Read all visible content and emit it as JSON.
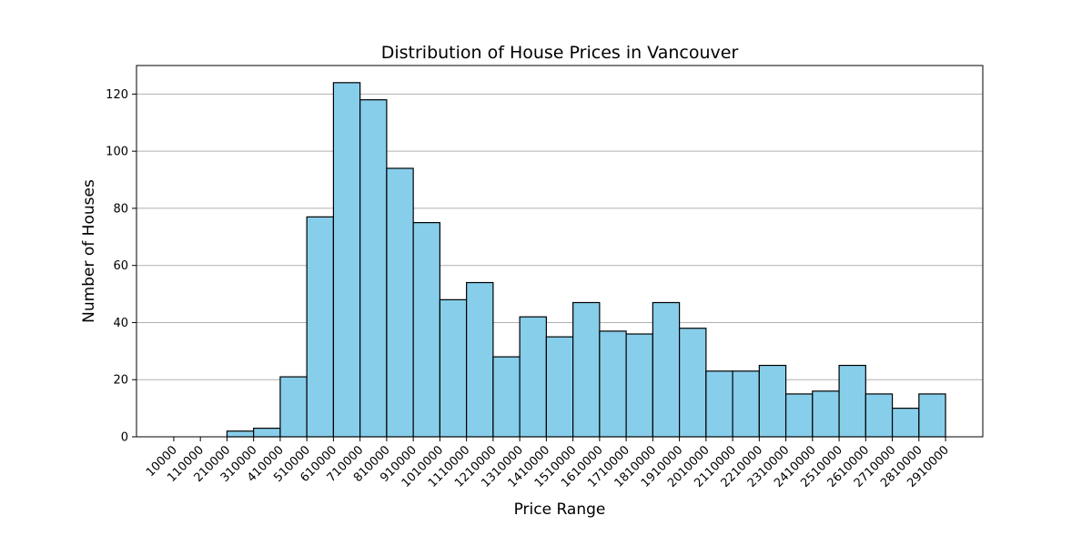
{
  "chart_data": {
    "type": "bar",
    "title": "Distribution of House Prices in Vancouver",
    "xlabel": "Price Range",
    "ylabel": "Number of Houses",
    "x_ticks": [
      "10000",
      "110000",
      "210000",
      "310000",
      "410000",
      "510000",
      "610000",
      "710000",
      "810000",
      "910000",
      "1010000",
      "1110000",
      "1210000",
      "1310000",
      "1410000",
      "1510000",
      "1610000",
      "1710000",
      "1810000",
      "1910000",
      "2010000",
      "2110000",
      "2210000",
      "2310000",
      "2410000",
      "2510000",
      "2610000",
      "2710000",
      "2810000",
      "2910000"
    ],
    "bins": [
      {
        "from": 10000,
        "to": 110000,
        "count": 0
      },
      {
        "from": 110000,
        "to": 210000,
        "count": 0
      },
      {
        "from": 210000,
        "to": 310000,
        "count": 2
      },
      {
        "from": 310000,
        "to": 410000,
        "count": 3
      },
      {
        "from": 410000,
        "to": 510000,
        "count": 21
      },
      {
        "from": 510000,
        "to": 610000,
        "count": 77
      },
      {
        "from": 610000,
        "to": 710000,
        "count": 124
      },
      {
        "from": 710000,
        "to": 810000,
        "count": 118
      },
      {
        "from": 810000,
        "to": 910000,
        "count": 94
      },
      {
        "from": 910000,
        "to": 1010000,
        "count": 75
      },
      {
        "from": 1010000,
        "to": 1110000,
        "count": 48
      },
      {
        "from": 1110000,
        "to": 1210000,
        "count": 54
      },
      {
        "from": 1210000,
        "to": 1310000,
        "count": 28
      },
      {
        "from": 1310000,
        "to": 1410000,
        "count": 42
      },
      {
        "from": 1410000,
        "to": 1510000,
        "count": 35
      },
      {
        "from": 1510000,
        "to": 1610000,
        "count": 47
      },
      {
        "from": 1610000,
        "to": 1710000,
        "count": 37
      },
      {
        "from": 1710000,
        "to": 1810000,
        "count": 36
      },
      {
        "from": 1810000,
        "to": 1910000,
        "count": 47
      },
      {
        "from": 1910000,
        "to": 2010000,
        "count": 38
      },
      {
        "from": 2010000,
        "to": 2110000,
        "count": 23
      },
      {
        "from": 2110000,
        "to": 2210000,
        "count": 23
      },
      {
        "from": 2210000,
        "to": 2310000,
        "count": 25
      },
      {
        "from": 2310000,
        "to": 2410000,
        "count": 15
      },
      {
        "from": 2410000,
        "to": 2510000,
        "count": 16
      },
      {
        "from": 2510000,
        "to": 2610000,
        "count": 25
      },
      {
        "from": 2610000,
        "to": 2710000,
        "count": 15
      },
      {
        "from": 2710000,
        "to": 2810000,
        "count": 10
      },
      {
        "from": 2810000,
        "to": 2910000,
        "count": 15
      }
    ],
    "y_ticks": [
      0,
      20,
      40,
      60,
      80,
      100,
      120
    ],
    "xlim": [
      -130000,
      3050000
    ],
    "ylim": [
      0,
      130
    ],
    "bar_color": "#87ceeb",
    "edge_color": "#000000",
    "grid": "y-axis only"
  }
}
